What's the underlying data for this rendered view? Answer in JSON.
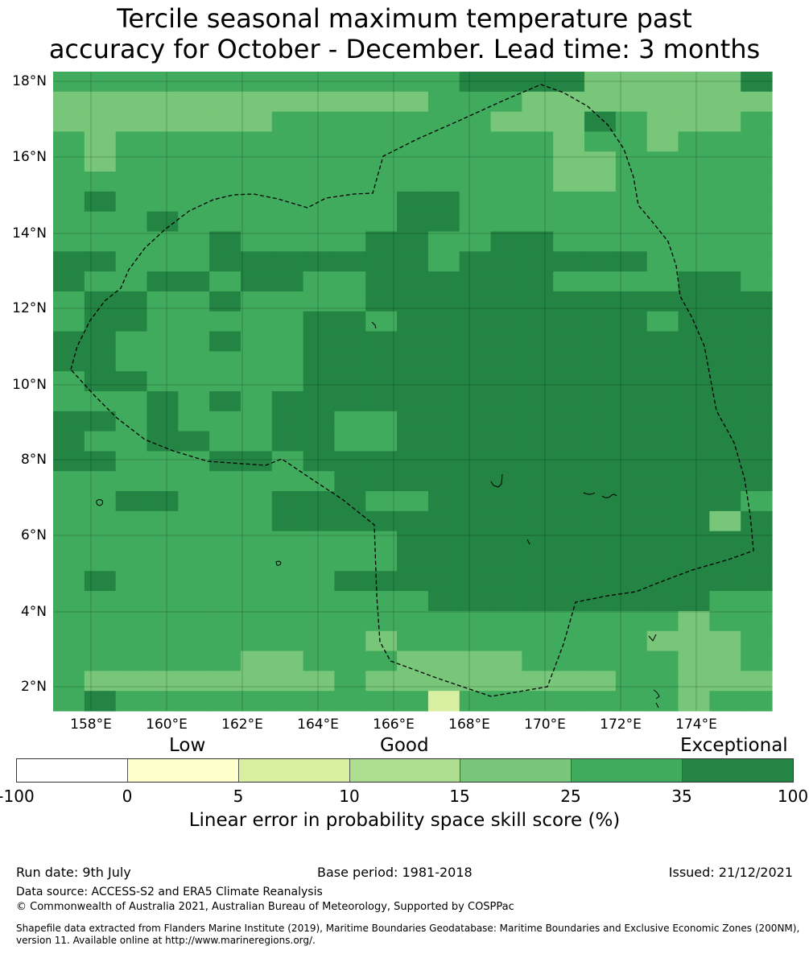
{
  "title": {
    "line1": "Tercile seasonal maximum temperature past",
    "line2": "accuracy for October - December. Lead time: 3 months"
  },
  "map": {
    "lat_labels": [
      "18°N",
      "16°N",
      "14°N",
      "12°N",
      "10°N",
      "8°N",
      "6°N",
      "4°N",
      "2°N"
    ],
    "lon_labels": [
      "158°E",
      "160°E",
      "162°E",
      "164°E",
      "166°E",
      "168°E",
      "170°E",
      "172°E",
      "174°E"
    ],
    "grid_rows": [
      "33333333333334444555554",
      "22222222222233352255552",
      "22222223333333225432223",
      "32333333333333332332333",
      "32333333333333332233333",
      "33333333333333332233333",
      "34333333333443333333333",
      "33343333333443333333333",
      "33333433334433443333333",
      "44333444444434444443333",
      "43344344334444443333443",
      "34433433334444444444444",
      "34433333443444444443444",
      "44333433444444444444444",
      "44333333444444444444444",
      "34433333444444444444444",
      "33343434444444444444444",
      "44343334433444444444444",
      "43344334433444444444444",
      "44333443444444444444444",
      "33333333344444444444444",
      "33443334443344444444443",
      "33333334444444444444424",
      "33333333333444444444444",
      "33333333333444444444444",
      "34333333344444444444444",
      "33333333333344444444433",
      "33333333333333333333233",
      "33333333332333333332223",
      "33333322333222233333223",
      "32222222232222222233222",
      "34333333333313333333233"
    ],
    "colors": {
      "1": "#d9efa1",
      "2": "#78c679",
      "3": "#41ab5d",
      "4": "#238443",
      "5": "#78c679"
    }
  },
  "legend": {
    "categories": [
      "Low",
      "Good",
      "Exceptional"
    ],
    "bins": [
      {
        "from": "-100",
        "to": "0",
        "color": "#ffffff"
      },
      {
        "from": "0",
        "to": "5",
        "color": "#ffffcc"
      },
      {
        "from": "5",
        "to": "10",
        "color": "#d9efa1"
      },
      {
        "from": "10",
        "to": "15",
        "color": "#addd8e"
      },
      {
        "from": "15",
        "to": "25",
        "color": "#78c679"
      },
      {
        "from": "25",
        "to": "35",
        "color": "#41ab5d"
      },
      {
        "from": "35",
        "to": "100",
        "color": "#238443"
      }
    ],
    "ticks": [
      "-100",
      "0",
      "5",
      "10",
      "15",
      "25",
      "35",
      "100"
    ],
    "label": "Linear error in probability space skill score (%)"
  },
  "footer": {
    "run_date": "Run date: 9th July",
    "base_period": "Base period: 1981-2018",
    "issued": "Issued: 21/12/2021",
    "data_source": "Data source: ACCESS-S2 and ERA5 Climate Reanalysis",
    "copyright": "© Commonwealth of Australia 2021, Australian Bureau of Meteorology, Supported by COSPPac",
    "shapefile_line1": "Shapefile data extracted from Flanders Marine Institute (2019), Maritime Boundaries Geodatabase: Maritime Boundaries and Exclusive Economic Zones (200NM),",
    "shapefile_line2": "version 11. Available online at http://www.marineregions.org/."
  }
}
